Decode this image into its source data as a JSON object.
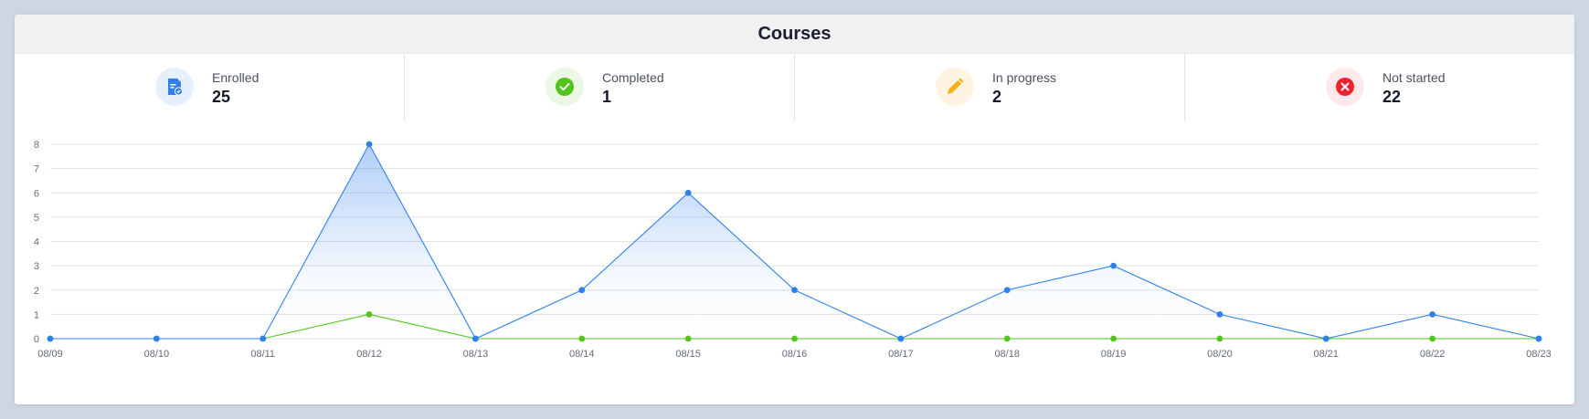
{
  "card": {
    "title": "Courses"
  },
  "stats": [
    {
      "label": "Enrolled",
      "value": "25",
      "icon": "enrolled-icon",
      "icon_color": "#2f80ed",
      "icon_bg": "#e6effc"
    },
    {
      "label": "Completed",
      "value": "1",
      "icon": "check-circle-icon",
      "icon_color": "#52c41a",
      "icon_bg": "#ecf7e6"
    },
    {
      "label": "In progress",
      "value": "2",
      "icon": "pencil-icon",
      "icon_color": "#faad14",
      "icon_bg": "#fff4e1"
    },
    {
      "label": "Not started",
      "value": "22",
      "icon": "x-circle-icon",
      "icon_color": "#f5222d",
      "icon_bg": "#fde9e9"
    }
  ],
  "chart_data": {
    "type": "line",
    "title": "",
    "xlabel": "",
    "ylabel": "",
    "ylim": [
      0,
      8
    ],
    "yticks": [
      "0",
      "1",
      "2",
      "3",
      "4",
      "5",
      "6",
      "7",
      "8"
    ],
    "grid": true,
    "categories": [
      "08/09",
      "08/10",
      "08/11",
      "08/12",
      "08/13",
      "08/14",
      "08/15",
      "08/16",
      "08/17",
      "08/18",
      "08/19",
      "08/20",
      "08/21",
      "08/22",
      "08/23"
    ],
    "series": [
      {
        "values": [
          0,
          0,
          0,
          8,
          0,
          2,
          6,
          2,
          0,
          2,
          3,
          1,
          0,
          1,
          0
        ],
        "color": "#2f80ed",
        "area": true
      },
      {
        "values": [
          0,
          0,
          0,
          1,
          0,
          0,
          0,
          0,
          0,
          0,
          0,
          0,
          0,
          0,
          0
        ],
        "color": "#52c41a",
        "area": false
      }
    ]
  }
}
